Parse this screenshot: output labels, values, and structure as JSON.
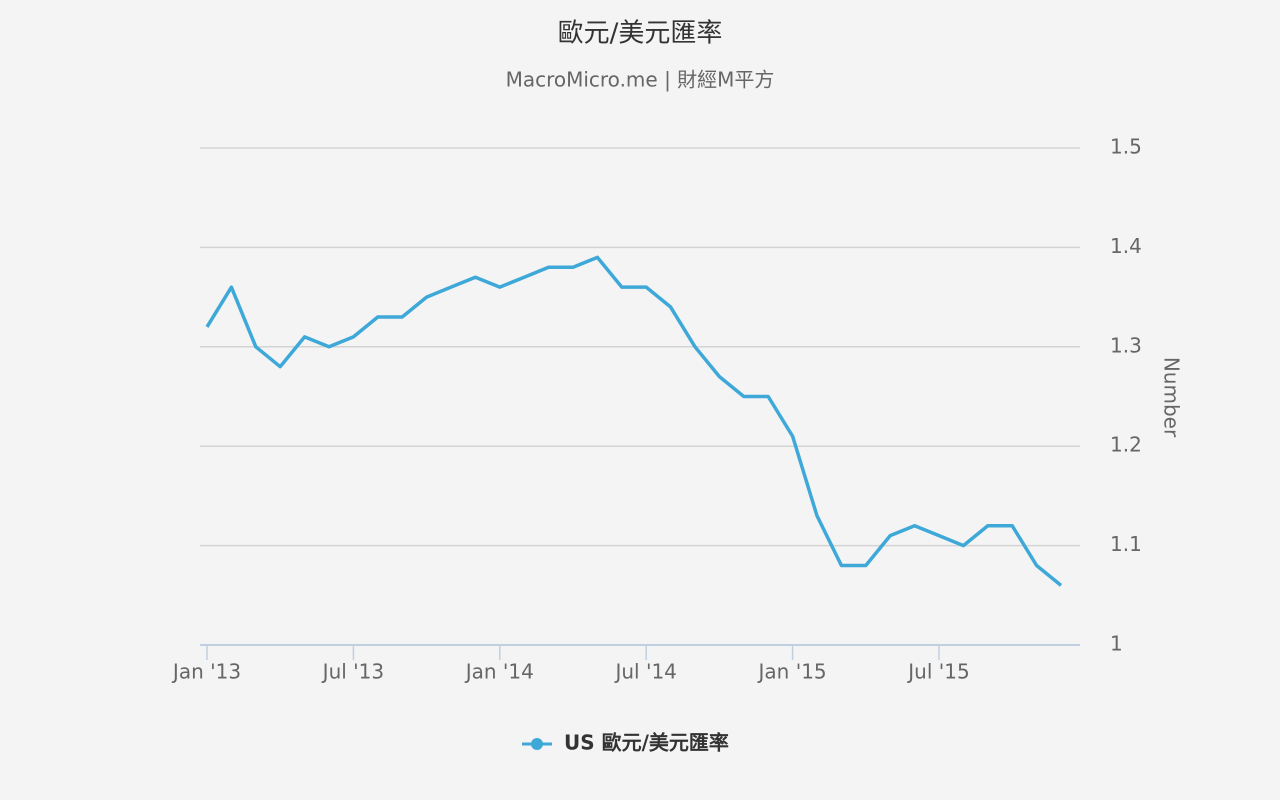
{
  "chart_data": {
    "type": "line",
    "title": "歐元/美元匯率",
    "subtitle": "MacroMicro.me | 財經M平方",
    "y_axis_label": "Number",
    "x": [
      "2013-01",
      "2013-02",
      "2013-03",
      "2013-04",
      "2013-05",
      "2013-06",
      "2013-07",
      "2013-08",
      "2013-09",
      "2013-10",
      "2013-11",
      "2013-12",
      "2014-01",
      "2014-02",
      "2014-03",
      "2014-04",
      "2014-05",
      "2014-06",
      "2014-07",
      "2014-08",
      "2014-09",
      "2014-10",
      "2014-11",
      "2014-12",
      "2015-01",
      "2015-02",
      "2015-03",
      "2015-04",
      "2015-05",
      "2015-06",
      "2015-07",
      "2015-08",
      "2015-09",
      "2015-10",
      "2015-11",
      "2015-12"
    ],
    "series": [
      {
        "name": "US 歐元/美元匯率",
        "color": "#3ea8d8",
        "values": [
          1.32,
          1.36,
          1.3,
          1.28,
          1.31,
          1.3,
          1.31,
          1.33,
          1.33,
          1.35,
          1.36,
          1.37,
          1.36,
          1.37,
          1.38,
          1.38,
          1.39,
          1.36,
          1.36,
          1.34,
          1.3,
          1.27,
          1.25,
          1.25,
          1.21,
          1.13,
          1.08,
          1.08,
          1.11,
          1.12,
          1.11,
          1.1,
          1.12,
          1.12,
          1.08,
          1.06
        ]
      }
    ],
    "xlim": [
      "2013-01",
      "2015-12"
    ],
    "xticks": [
      {
        "value": "2013-01",
        "label": "Jan '13"
      },
      {
        "value": "2013-07",
        "label": "Jul '13"
      },
      {
        "value": "2014-01",
        "label": "Jan '14"
      },
      {
        "value": "2014-07",
        "label": "Jul '14"
      },
      {
        "value": "2015-01",
        "label": "Jan '15"
      },
      {
        "value": "2015-07",
        "label": "Jul '15"
      }
    ],
    "ylim": [
      1,
      1.5
    ],
    "yticks": [
      1,
      1.1,
      1.2,
      1.3,
      1.4,
      1.5
    ],
    "grid": true,
    "legend": "bottom"
  }
}
